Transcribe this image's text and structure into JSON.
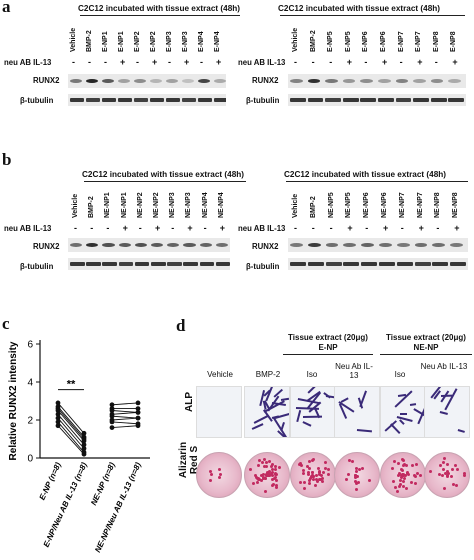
{
  "panels": {
    "a": "a",
    "b": "b",
    "c": "c",
    "d": "d"
  },
  "blot_a": {
    "left_title": "C2C12 incubated with tissue extract (48h)",
    "right_title": "C2C12 incubated with tissue extract (48h)",
    "left_lanes": [
      "Vehicle",
      "BMP-2",
      "E-NP1",
      "E-NP1",
      "E-NP2",
      "E-NP2",
      "E-NP3",
      "E-NP3",
      "E-NP4",
      "E-NP4"
    ],
    "right_lanes": [
      "Vehicle",
      "BMP-2",
      "E-NP5",
      "E-NP5",
      "E-NP6",
      "E-NP6",
      "E-NP7",
      "E-NP7",
      "E-NP8",
      "E-NP8"
    ],
    "neu_label": "neu AB IL-13",
    "neu_marks": [
      "-",
      "-",
      "-",
      "+",
      "-",
      "+",
      "-",
      "+",
      "-",
      "+"
    ],
    "runx2_label": "RUNX2",
    "tubulin_label": "β-tubulin"
  },
  "blot_b": {
    "left_title": "C2C12 incubated with tissue extract (48h)",
    "right_title": "C2C12 incubated with tissue extract (48h)",
    "left_lanes": [
      "Vehicle",
      "BMP-2",
      "NE-NP1",
      "NE-NP1",
      "NE-NP2",
      "NE-NP2",
      "NE-NP3",
      "NE-NP3",
      "NE-NP4",
      "NE-NP4"
    ],
    "right_lanes": [
      "Vehicle",
      "BMP-2",
      "NE-NP5",
      "NE-NP5",
      "NE-NP6",
      "NE-NP6",
      "NE-NP7",
      "NE-NP7",
      "NE-NP8",
      "NE-NP8"
    ],
    "neu_label": "neu AB IL-13",
    "neu_marks": [
      "-",
      "-",
      "-",
      "+",
      "-",
      "+",
      "-",
      "+",
      "-",
      "+"
    ],
    "runx2_label": "RUNX2",
    "tubulin_label": "β-tubulin"
  },
  "panel_c": {
    "ylabel": "Relative RUNX2 intensity",
    "yticks": [
      "0",
      "2",
      "4",
      "6"
    ],
    "significance": "**",
    "xlabels": [
      "E-NP (n=8)",
      "E-NP/Neu AB IL-13 (n=8)",
      "NE-NP (n=8)",
      "NE-NP/Neu AB IL-13 (n=8)"
    ]
  },
  "chart_data": {
    "type": "scatter",
    "title": "",
    "xlabel": "",
    "ylabel": "Relative RUNX2 intensity",
    "ylim": [
      0,
      6
    ],
    "categories": [
      "E-NP (n=8)",
      "E-NP/Neu AB IL-13 (n=8)",
      "NE-NP (n=8)",
      "NE-NP/Neu AB IL-13 (n=8)"
    ],
    "paired_groups": [
      {
        "pair": [
          "E-NP (n=8)",
          "E-NP/Neu AB IL-13 (n=8)"
        ],
        "before": [
          2.9,
          2.7,
          2.6,
          2.5,
          2.3,
          2.1,
          1.9,
          1.7
        ],
        "after": [
          1.3,
          1.1,
          1.0,
          0.9,
          0.7,
          0.5,
          0.3,
          0.2
        ]
      },
      {
        "pair": [
          "NE-NP (n=8)",
          "NE-NP/Neu AB IL-13 (n=8)"
        ],
        "before": [
          2.8,
          2.6,
          2.5,
          2.3,
          2.2,
          2.0,
          1.9,
          1.6
        ],
        "after": [
          2.9,
          2.6,
          2.4,
          2.4,
          2.1,
          2.1,
          1.8,
          1.7
        ]
      }
    ],
    "annotation": "**"
  },
  "panel_d": {
    "header_left": "Tissue extract (20μg)",
    "header_left_sub": "E-NP",
    "header_right": "Tissue extract (20μg)",
    "header_right_sub": "NE-NP",
    "columns": [
      "Vehicle",
      "BMP-2",
      "Iso",
      "Neu Ab IL-13",
      "Iso",
      "Neu Ab IL-13"
    ],
    "row_alp": "ALP",
    "row_ars": "Alizarin Red S"
  },
  "colors": {
    "stain": "#3a2a78",
    "alizarin": "#c22a60"
  }
}
